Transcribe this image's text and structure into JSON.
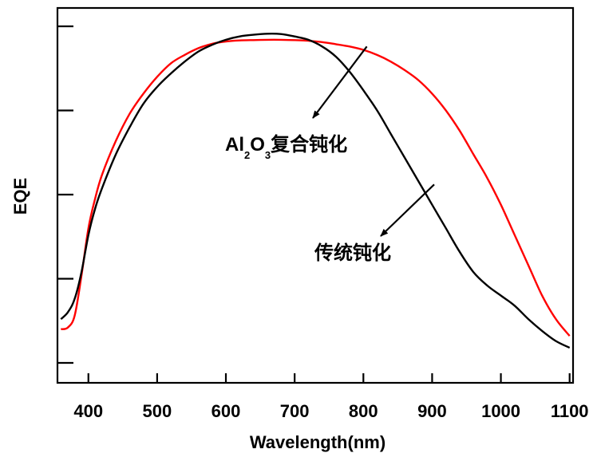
{
  "chart_data": {
    "type": "line",
    "title": "",
    "xlabel": "Wavelength(nm)",
    "ylabel": "EQE",
    "xlim": [
      355,
      1105
    ],
    "ylim": [
      0,
      1
    ],
    "xticks": [
      400,
      500,
      600,
      700,
      800,
      900,
      1000,
      1100
    ],
    "xtick_labels": [
      "400",
      "500",
      "600",
      "700",
      "800",
      "900",
      "1000",
      "1100"
    ],
    "yticks": [
      0.0,
      0.25,
      0.5,
      0.75,
      1.0
    ],
    "ytick_labels_visible": false,
    "grid": false,
    "series": [
      {
        "color": "#000000",
        "x": [
          360,
          370,
          380,
          390,
          400,
          410,
          420,
          440,
          460,
          480,
          500,
          520,
          540,
          560,
          580,
          600,
          620,
          640,
          660,
          680,
          700,
          720,
          740,
          760,
          780,
          800,
          820,
          840,
          860,
          880,
          900,
          920,
          940,
          960,
          980,
          1000,
          1020,
          1040,
          1060,
          1080,
          1100
        ],
        "y": [
          0.13,
          0.15,
          0.19,
          0.27,
          0.38,
          0.46,
          0.52,
          0.62,
          0.7,
          0.77,
          0.82,
          0.86,
          0.895,
          0.925,
          0.945,
          0.96,
          0.97,
          0.975,
          0.978,
          0.977,
          0.97,
          0.96,
          0.94,
          0.91,
          0.865,
          0.81,
          0.75,
          0.68,
          0.61,
          0.54,
          0.47,
          0.4,
          0.33,
          0.27,
          0.23,
          0.2,
          0.17,
          0.13,
          0.095,
          0.065,
          0.045
        ]
      },
      {
        "color": "#ff0000",
        "x": [
          360,
          370,
          380,
          390,
          400,
          410,
          420,
          440,
          460,
          480,
          500,
          520,
          540,
          560,
          580,
          600,
          620,
          640,
          660,
          680,
          700,
          720,
          740,
          760,
          780,
          800,
          820,
          840,
          860,
          880,
          900,
          920,
          940,
          960,
          980,
          1000,
          1020,
          1040,
          1060,
          1080,
          1100
        ],
        "y": [
          0.1,
          0.105,
          0.14,
          0.26,
          0.4,
          0.49,
          0.56,
          0.66,
          0.74,
          0.8,
          0.85,
          0.89,
          0.915,
          0.935,
          0.948,
          0.955,
          0.958,
          0.959,
          0.96,
          0.96,
          0.959,
          0.957,
          0.953,
          0.947,
          0.94,
          0.93,
          0.915,
          0.895,
          0.87,
          0.84,
          0.8,
          0.75,
          0.69,
          0.62,
          0.55,
          0.47,
          0.38,
          0.29,
          0.2,
          0.13,
          0.08
        ]
      }
    ],
    "annotations": [
      {
        "text_main": "Al",
        "sub1": "2",
        "text_mid": "O",
        "sub2": "3",
        "text_end": "复合钝化",
        "x": 805,
        "y": 0.94,
        "target": "red"
      },
      {
        "text_main": "传统钝化",
        "x": 903,
        "y": 0.53,
        "target": "black"
      }
    ]
  }
}
